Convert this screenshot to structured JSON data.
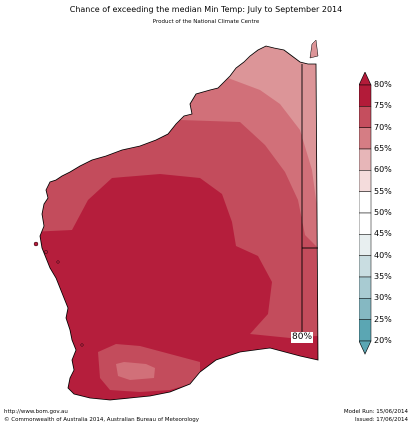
{
  "header": {
    "title": "Chance of exceeding the median Min Temp: July to September 2014",
    "subtitle": "Product of the National Climate Centre"
  },
  "map": {
    "contour_label": "80%",
    "region_colors": {
      "very_high": "#b51e3c",
      "high": "#c34c5c",
      "medium_high": "#d17079",
      "medium": "#dc9598",
      "border": "#000000"
    }
  },
  "legend": {
    "labels": [
      "80%",
      "75%",
      "70%",
      "65%",
      "60%",
      "55%",
      "50%",
      "45%",
      "40%",
      "35%",
      "30%",
      "25%",
      "20%"
    ],
    "colors": [
      "#b31b39",
      "#c54e5e",
      "#d57d84",
      "#e7b6b8",
      "#f4dcdc",
      "#ffffff",
      "#ffffff",
      "#e8eff0",
      "#c9dde1",
      "#a8cbd2",
      "#85b8c2",
      "#5ba6b3"
    ],
    "top_arrow_color": "#b31b39",
    "bottom_arrow_color": "#5ba6b3"
  },
  "footer": {
    "url": "http://www.bom.gov.au",
    "copyright": "©  Commonwealth of Australia 2014, Australian Bureau of Meteorology",
    "model_run": "Model Run: 15/06/2014",
    "issued": "Issued: 17/06/2014"
  }
}
